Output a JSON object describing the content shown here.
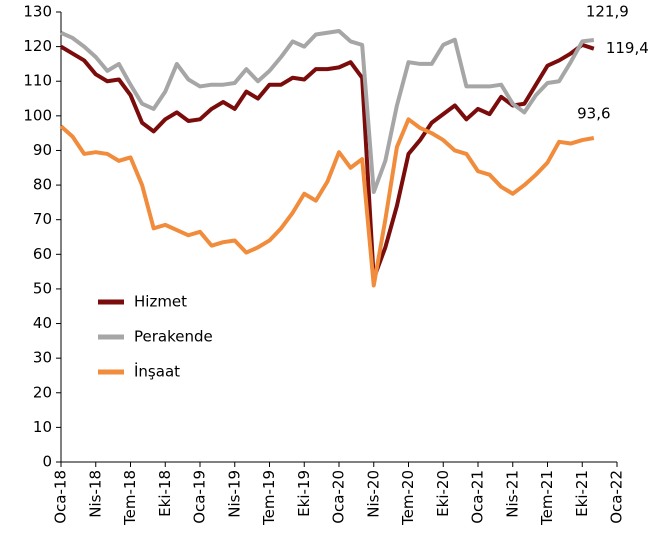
{
  "chart_data": {
    "type": "line",
    "categories": [
      "Oca-18",
      null,
      null,
      "Nis-18",
      null,
      null,
      "Tem-18",
      null,
      null,
      "Eki-18",
      null,
      null,
      "Oca-19",
      null,
      null,
      "Nis-19",
      null,
      null,
      "Tem-19",
      null,
      null,
      "Eki-19",
      null,
      null,
      "Oca-20",
      null,
      null,
      "Nis-20",
      null,
      null,
      "Tem-20",
      null,
      null,
      "Eki-20",
      null,
      null,
      "Oca-21",
      null,
      null,
      "Nis-21",
      null,
      null,
      "Tem-21",
      null,
      null,
      "Eki-21",
      null,
      null,
      "Oca-22"
    ],
    "series": [
      {
        "name": "Hizmet",
        "color": "#7b0c0c",
        "values": [
          120,
          118,
          116,
          112,
          110,
          110.5,
          106,
          98,
          95.5,
          99,
          101,
          98.5,
          99,
          102,
          104,
          102,
          107,
          105,
          109,
          109,
          111,
          110.5,
          113.5,
          113.5,
          114,
          115.5,
          111,
          53,
          62,
          74,
          89,
          93,
          98,
          100.5,
          103,
          99,
          102,
          100.5,
          105.5,
          103,
          103.5,
          109,
          114.5,
          116,
          118,
          120.5,
          119.4,
          null,
          null
        ],
        "value_labels": [
          null,
          null,
          null,
          null,
          null,
          null,
          null,
          null,
          null,
          null,
          null,
          null,
          null,
          null,
          null,
          null,
          null,
          null,
          null,
          null,
          null,
          null,
          null,
          null,
          null,
          null,
          null,
          null,
          null,
          null,
          null,
          null,
          null,
          null,
          null,
          null,
          null,
          null,
          null,
          null,
          null,
          null,
          null,
          null,
          null,
          null,
          "119,4",
          null,
          null
        ]
      },
      {
        "name": "Perakende",
        "color": "#a6a6a6",
        "values": [
          124,
          122.5,
          120,
          117,
          113,
          115,
          109,
          103.5,
          102,
          107,
          115,
          110.5,
          108.5,
          109,
          109,
          109.5,
          113.5,
          110,
          113,
          117,
          121.5,
          120,
          123.5,
          124,
          124.5,
          121.5,
          120.5,
          78,
          87,
          103,
          115.5,
          115,
          115,
          120.5,
          122,
          108.5,
          108.5,
          108.5,
          109,
          103.5,
          101,
          106,
          109.5,
          110,
          115.5,
          121.5,
          121.9,
          null,
          null
        ],
        "value_labels": [
          null,
          null,
          null,
          null,
          null,
          null,
          null,
          null,
          null,
          null,
          null,
          null,
          null,
          null,
          null,
          null,
          null,
          null,
          null,
          null,
          null,
          null,
          null,
          null,
          null,
          null,
          null,
          null,
          null,
          null,
          null,
          null,
          null,
          null,
          null,
          null,
          null,
          null,
          null,
          null,
          null,
          null,
          null,
          null,
          null,
          null,
          "121,9",
          null,
          null
        ]
      },
      {
        "name": "İnşaat",
        "color": "#f08c3c",
        "values": [
          97,
          94,
          89,
          89.5,
          89,
          87,
          88,
          80,
          67.5,
          68.5,
          67,
          65.5,
          66.5,
          62.5,
          63.5,
          64,
          60.5,
          62,
          64,
          67.5,
          72,
          77.5,
          75.5,
          81,
          89.5,
          85,
          87.5,
          51,
          70,
          91,
          99,
          96.5,
          95,
          93,
          90,
          89,
          84,
          83,
          79.5,
          77.5,
          80,
          83,
          86.5,
          92.5,
          92,
          93,
          93.6,
          null,
          null
        ],
        "value_labels": [
          null,
          null,
          null,
          null,
          null,
          null,
          null,
          null,
          null,
          null,
          null,
          null,
          null,
          null,
          null,
          null,
          null,
          null,
          null,
          null,
          null,
          null,
          null,
          null,
          null,
          null,
          null,
          null,
          null,
          null,
          null,
          null,
          null,
          null,
          null,
          null,
          null,
          null,
          null,
          null,
          null,
          null,
          null,
          null,
          null,
          null,
          "93,6",
          null,
          null
        ]
      }
    ],
    "ylim": [
      0,
      130
    ],
    "yticks": [
      0,
      10,
      20,
      30,
      40,
      50,
      60,
      70,
      80,
      90,
      100,
      110,
      120,
      130
    ],
    "legend": "left"
  }
}
